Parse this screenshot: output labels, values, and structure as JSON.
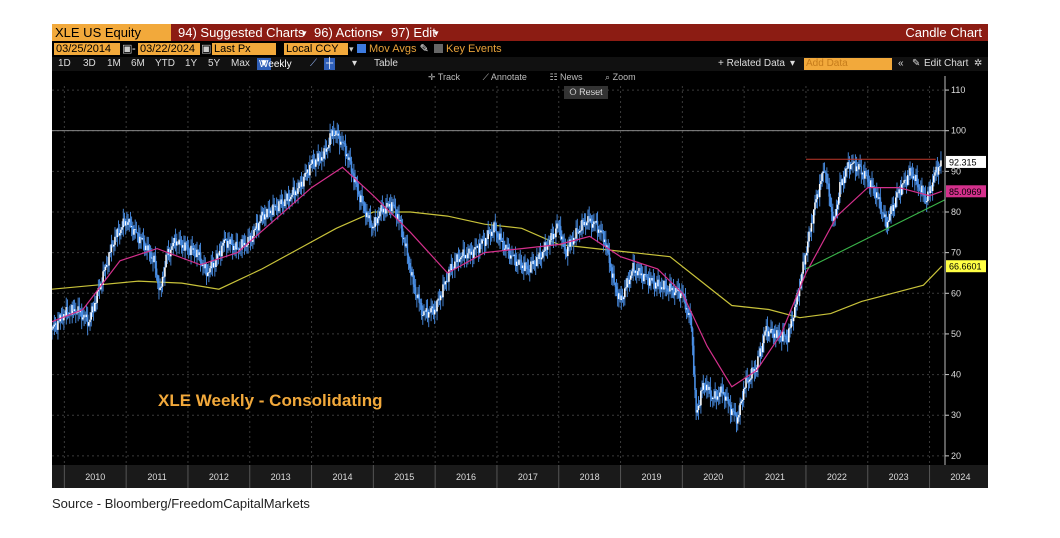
{
  "toolbar": {
    "ticker": "XLE US Equity",
    "suggested": "94) Suggested Charts",
    "actions": "96) Actions",
    "edit": "97) Edit",
    "chart_type": "Candle Chart",
    "start_date": "03/25/2014",
    "end_date": "03/22/2024",
    "price_field": "Last Px",
    "currency": "Local CCY",
    "mov_avgs": "Mov Avgs",
    "key_events": "Key Events",
    "ranges": [
      "1D",
      "3D",
      "1M",
      "6M",
      "YTD",
      "1Y",
      "5Y",
      "Max"
    ],
    "period": "Weekly",
    "table": "Table",
    "related": "+ Related Data",
    "add_data_placeholder": "Add Data",
    "edit_chart": "Edit Chart",
    "track": "Track",
    "annotate": "Annotate",
    "news": "News",
    "zoom": "Zoom",
    "reset": "Reset"
  },
  "caption": "Source - Bloomberg/FreedomCapitalMarkets",
  "colors": {
    "title_bar": "#8c1c13",
    "amber": "#f2a93b",
    "candles": "#4a8fe6",
    "ma_short": "#d4308c",
    "ma_long": "#c8c23a",
    "trend": "#3ab54a",
    "resistance": "#c0392b"
  },
  "chart_data": {
    "type": "line",
    "title": "XLE Weekly - Consolidating",
    "y_ticks": [
      20,
      30,
      40,
      50,
      60,
      70,
      80,
      90,
      100,
      110
    ],
    "ylim": [
      18,
      111
    ],
    "x_ticks": [
      "2010",
      "2011",
      "2012",
      "2013",
      "2014",
      "2015",
      "2016",
      "2017",
      "2018",
      "2019",
      "2020",
      "2021",
      "2022",
      "2023",
      "2024"
    ],
    "xlim": [
      2009.8,
      2024.25
    ],
    "series": [
      {
        "name": "price",
        "x": [
          2009.8,
          2010.0,
          2010.2,
          2010.4,
          2010.6,
          2010.8,
          2011.0,
          2011.2,
          2011.3,
          2011.45,
          2011.55,
          2011.65,
          2011.8,
          2012.0,
          2012.15,
          2012.3,
          2012.45,
          2012.6,
          2012.8,
          2013.0,
          2013.2,
          2013.4,
          2013.6,
          2013.8,
          2014.0,
          2014.2,
          2014.35,
          2014.5,
          2014.6,
          2014.75,
          2014.9,
          2015.0,
          2015.1,
          2015.3,
          2015.4,
          2015.5,
          2015.65,
          2015.8,
          2016.0,
          2016.1,
          2016.25,
          2016.4,
          2016.6,
          2016.8,
          2016.95,
          2017.1,
          2017.3,
          2017.5,
          2017.7,
          2017.9,
          2018.0,
          2018.1,
          2018.3,
          2018.45,
          2018.6,
          2018.75,
          2018.9,
          2019.0,
          2019.2,
          2019.4,
          2019.6,
          2019.8,
          2020.0,
          2020.15,
          2020.22,
          2020.35,
          2020.5,
          2020.65,
          2020.8,
          2020.9,
          2021.0,
          2021.2,
          2021.35,
          2021.5,
          2021.7,
          2021.85,
          2022.0,
          2022.15,
          2022.3,
          2022.45,
          2022.55,
          2022.7,
          2022.85,
          2023.0,
          2023.15,
          2023.3,
          2023.5,
          2023.7,
          2023.8,
          2023.95,
          2024.0,
          2024.1,
          2024.2
        ],
        "y": [
          51,
          55,
          56,
          53,
          63,
          73,
          78,
          74,
          72,
          68,
          60,
          69,
          73,
          71,
          70,
          65,
          68,
          73,
          71,
          73,
          79,
          81,
          83,
          86,
          92,
          94,
          100,
          97,
          93,
          85,
          79,
          76,
          80,
          82,
          79,
          73,
          62,
          55,
          56,
          60,
          66,
          69,
          70,
          73,
          76,
          72,
          68,
          66,
          69,
          74,
          77,
          70,
          75,
          78,
          77,
          73,
          62,
          58,
          66,
          64,
          62,
          61,
          60,
          52,
          30,
          38,
          34,
          36,
          31,
          29,
          37,
          42,
          51,
          50,
          49,
          58,
          70,
          82,
          91,
          77,
          86,
          92,
          91,
          88,
          84,
          77,
          85,
          90,
          87,
          83,
          85,
          90,
          92.3
        ]
      },
      {
        "name": "ma_short",
        "x": [
          2009.8,
          2010.3,
          2010.9,
          2011.5,
          2012.2,
          2012.8,
          2013.4,
          2014.0,
          2014.5,
          2015.0,
          2015.6,
          2016.2,
          2016.8,
          2017.4,
          2018.0,
          2018.5,
          2019.0,
          2019.6,
          2020.0,
          2020.4,
          2020.8,
          2021.2,
          2021.6,
          2022.0,
          2022.5,
          2023.0,
          2023.5,
          2024.0,
          2024.2
        ],
        "y": [
          53,
          56,
          68,
          71,
          67,
          70,
          78,
          86,
          91,
          84,
          75,
          65,
          70,
          71,
          72,
          74,
          69,
          66,
          60,
          47,
          37,
          41,
          50,
          65,
          79,
          86,
          86,
          84,
          85.1
        ]
      },
      {
        "name": "ma_long",
        "x": [
          2009.8,
          2010.5,
          2011.2,
          2011.9,
          2012.5,
          2013.2,
          2013.8,
          2014.4,
          2015.0,
          2015.6,
          2016.2,
          2016.8,
          2017.4,
          2018.0,
          2018.6,
          2019.2,
          2019.8,
          2020.3,
          2020.8,
          2021.4,
          2021.9,
          2022.4,
          2022.9,
          2023.4,
          2023.9,
          2024.2
        ],
        "y": [
          61,
          62,
          63,
          62.5,
          61,
          66,
          71,
          76,
          80,
          80,
          79,
          77,
          76,
          72,
          71,
          70,
          69,
          63,
          57,
          56,
          54,
          55,
          58,
          60,
          62,
          66.7
        ]
      },
      {
        "name": "trend",
        "x": [
          2022.0,
          2024.25
        ],
        "y": [
          66,
          83
        ]
      },
      {
        "name": "resistance",
        "x": [
          2022.0,
          2024.1
        ],
        "y": [
          93,
          93
        ]
      }
    ],
    "price_labels": [
      {
        "value": 92.315,
        "text": "92.315",
        "color": "#ffffff"
      },
      {
        "value": 85.0969,
        "text": "85.0969",
        "color": "#d4308c"
      },
      {
        "value": 66.6601,
        "text": "66.6601",
        "color": "#ffff44"
      }
    ]
  }
}
